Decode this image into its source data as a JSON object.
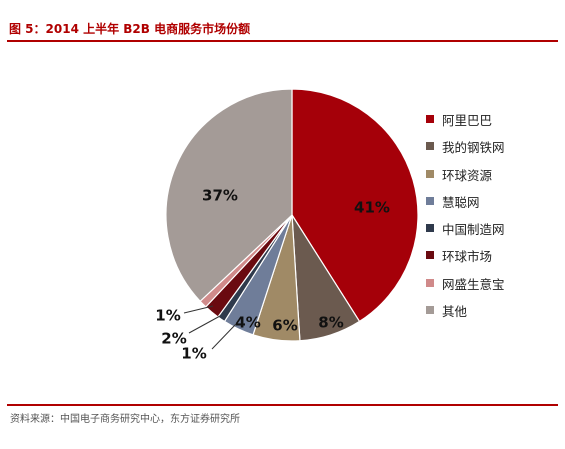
{
  "figure": {
    "title": "图 5：2014 上半年 B2B 电商服务市场份额",
    "source": "资料来源：中国电子商务研究中心，东方证券研究所"
  },
  "chart_data": {
    "type": "pie",
    "title": "图 5：2014 上半年 B2B 电商服务市场份额",
    "legend_position": "right",
    "series": [
      {
        "name": "阿里巴巴",
        "value": 41,
        "label": "41%",
        "color": "#a50009"
      },
      {
        "name": "我的钢铁网",
        "value": 8,
        "label": "8%",
        "color": "#6b5a4f"
      },
      {
        "name": "环球资源",
        "value": 6,
        "label": "6%",
        "color": "#a08a66"
      },
      {
        "name": "慧聪网",
        "value": 4,
        "label": "4%",
        "color": "#6f7d99"
      },
      {
        "name": "中国制造网",
        "value": 1,
        "label": "1%",
        "color": "#2f3a4c"
      },
      {
        "name": "环球市场",
        "value": 2,
        "label": "2%",
        "color": "#6a0a10"
      },
      {
        "name": "网盛生意宝",
        "value": 1,
        "label": "1%",
        "color": "#d08a8a"
      },
      {
        "name": "其他",
        "value": 37,
        "label": "37%",
        "color": "#a49b97"
      }
    ]
  }
}
